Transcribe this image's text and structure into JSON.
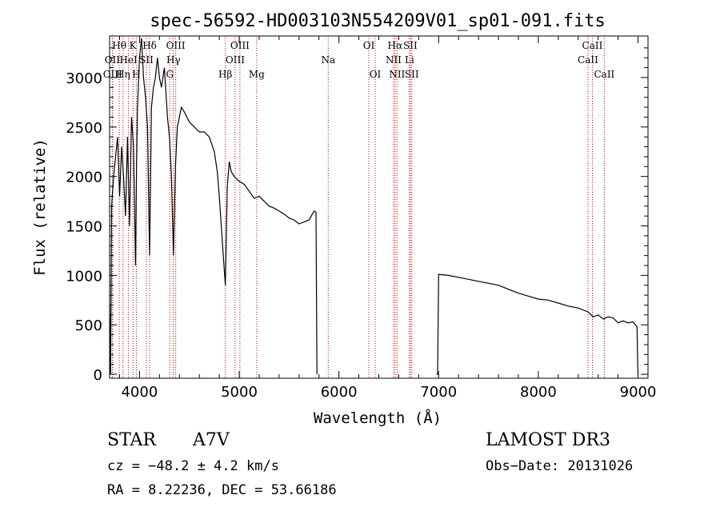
{
  "chart_data": {
    "type": "line",
    "title": "spec-56592-HD003103N554209V01_sp01-091.fits",
    "xlabel": "Wavelength (Å)",
    "ylabel": "Flux (relative)",
    "xlim": [
      3700,
      9100
    ],
    "ylim": [
      -40,
      3420
    ],
    "xticks": [
      4000,
      5000,
      6000,
      7000,
      8000,
      9000
    ],
    "yticks": [
      0,
      500,
      1000,
      1500,
      2000,
      2500,
      3000
    ],
    "series": [
      {
        "name": "flux-segment-blue",
        "x": [
          3700,
          3710,
          3720,
          3740,
          3760,
          3780,
          3800,
          3820,
          3840,
          3860,
          3880,
          3900,
          3920,
          3940,
          3960,
          3970,
          3980,
          4000,
          4020,
          4040,
          4060,
          4080,
          4101,
          4120,
          4140,
          4160,
          4180,
          4200,
          4220,
          4250,
          4280,
          4300,
          4320,
          4340,
          4360,
          4380,
          4400,
          4420,
          4450,
          4500,
          4550,
          4600,
          4650,
          4700,
          4750,
          4780,
          4800,
          4820,
          4840,
          4861,
          4880,
          4900,
          4920,
          4950,
          5000,
          5050,
          5100,
          5150,
          5200,
          5250,
          5300,
          5350,
          5400,
          5450,
          5500,
          5550,
          5600,
          5650,
          5700,
          5750,
          5770,
          5780
        ],
        "values": [
          700,
          0,
          1700,
          2000,
          2200,
          2400,
          1800,
          2300,
          2000,
          1600,
          2400,
          1500,
          2600,
          2300,
          1100,
          2100,
          2700,
          3200,
          3400,
          3000,
          2800,
          2500,
          1200,
          2700,
          2900,
          3000,
          3200,
          3000,
          2900,
          3100,
          2600,
          2400,
          2000,
          1200,
          2100,
          2500,
          2600,
          2700,
          2650,
          2550,
          2500,
          2450,
          2450,
          2400,
          2250,
          2050,
          1800,
          1500,
          1200,
          900,
          1900,
          2150,
          2050,
          2000,
          1950,
          1920,
          1850,
          1780,
          1800,
          1750,
          1700,
          1680,
          1650,
          1620,
          1580,
          1560,
          1520,
          1540,
          1560,
          1650,
          1640,
          0
        ]
      },
      {
        "name": "flux-segment-red",
        "x": [
          6980,
          6990,
          7000,
          7100,
          7200,
          7300,
          7400,
          7500,
          7600,
          7700,
          7800,
          7900,
          8000,
          8100,
          8200,
          8300,
          8400,
          8500,
          8550,
          8600,
          8650,
          8700,
          8750,
          8800,
          8850,
          8900,
          8950,
          8990,
          8995,
          9000
        ],
        "values": [
          0,
          0,
          1010,
          1000,
          980,
          960,
          940,
          920,
          900,
          860,
          820,
          790,
          760,
          750,
          720,
          690,
          670,
          630,
          580,
          600,
          560,
          580,
          570,
          520,
          540,
          520,
          530,
          480,
          200,
          0
        ]
      }
    ],
    "lines": [
      {
        "label": "Hθ",
        "x": 3797,
        "row": 0
      },
      {
        "label": "OII",
        "x": 3727,
        "row": 1
      },
      {
        "label": "OIII",
        "x": 3730,
        "row": 2
      },
      {
        "label": "Hη",
        "x": 3835,
        "row": 2
      },
      {
        "label": "K",
        "x": 3934,
        "row": 0
      },
      {
        "label": "HeI",
        "x": 3889,
        "row": 1
      },
      {
        "label": "SII",
        "x": 4069,
        "row": 1
      },
      {
        "label": "H",
        "x": 3968,
        "row": 2
      },
      {
        "label": "Hδ",
        "x": 4101,
        "row": 0
      },
      {
        "label": "OIII",
        "x": 4363,
        "row": 0
      },
      {
        "label": "Hγ",
        "x": 4340,
        "row": 1
      },
      {
        "label": "G",
        "x": 4304,
        "row": 2
      },
      {
        "label": "Hβ",
        "x": 4861,
        "row": 2
      },
      {
        "label": "OIII",
        "x": 5007,
        "row": 0
      },
      {
        "label": "OIII",
        "x": 4959,
        "row": 1
      },
      {
        "label": "Mg",
        "x": 5175,
        "row": 2
      },
      {
        "label": "Na",
        "x": 5893,
        "row": 1
      },
      {
        "label": "OI",
        "x": 6300,
        "row": 0
      },
      {
        "label": "OI",
        "x": 6364,
        "row": 2
      },
      {
        "label": "Hα",
        "x": 6563,
        "row": 0
      },
      {
        "label": "SII",
        "x": 6716,
        "row": 0
      },
      {
        "label": "NII",
        "x": 6548,
        "row": 1
      },
      {
        "label": "Li",
        "x": 6708,
        "row": 1
      },
      {
        "label": "NII",
        "x": 6583,
        "row": 2
      },
      {
        "label": "SII",
        "x": 6731,
        "row": 2
      },
      {
        "label": "CaII",
        "x": 8542,
        "row": 0
      },
      {
        "label": "CaII",
        "x": 8498,
        "row": 1
      },
      {
        "label": "CaII",
        "x": 8662,
        "row": 2
      }
    ]
  },
  "info": {
    "object_type": "STAR",
    "spectral_class": "A7V",
    "survey": "LAMOST DR3",
    "cz": "cz = −48.2 ± 4.2 km/s",
    "obs_date": "Obs−Date: 20131026",
    "coords": "RA =   8.22236, DEC =  53.66186"
  }
}
